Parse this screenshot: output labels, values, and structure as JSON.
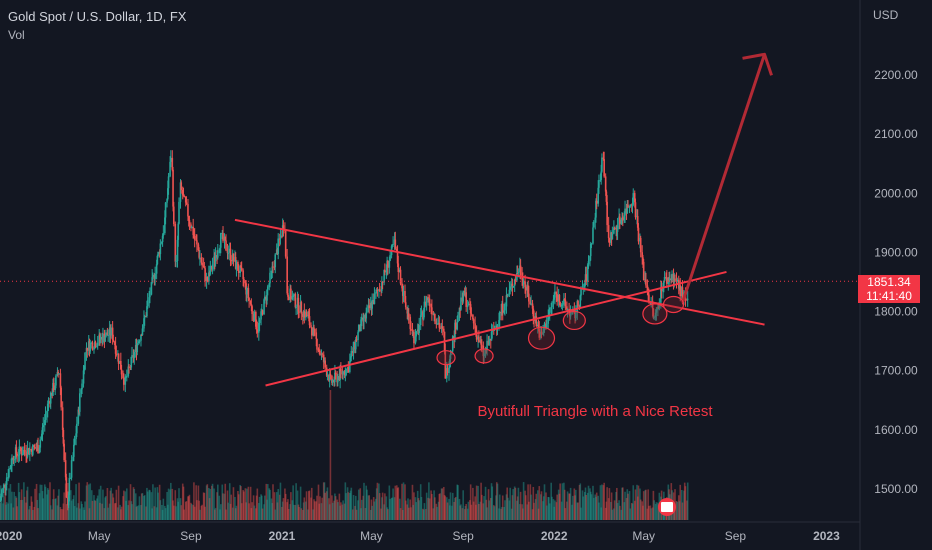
{
  "legend": {
    "title": "Gold Spot / U.S. Dollar, 1D, FX",
    "volume_label": "Vol"
  },
  "price_axis": {
    "currency": "USD",
    "current_price": "1851.34",
    "countdown": "11:41:40"
  },
  "annotation_text": "Byutifull Triangle with a Nice Retest",
  "colors": {
    "background": "#131722",
    "up": "#26a69a",
    "down": "#ef5350",
    "drawing": "#f23645",
    "arrow": "#b22a35",
    "price_line": "#f23645"
  },
  "chart_data": {
    "type": "candlestick",
    "title": "Gold Spot / U.S. Dollar, 1D, FX",
    "y_axis": {
      "ticks": [
        1500,
        1600,
        1700,
        1800,
        1900,
        2000,
        2100,
        2200
      ],
      "tick_labels": [
        "1500.00",
        "1600.00",
        "1700.00",
        "1800.00",
        "1900.00",
        "2000.00",
        "2100.00",
        "2200.00"
      ],
      "range": [
        1450,
        2330
      ]
    },
    "x_axis": {
      "tick_labels": [
        "2020",
        "May",
        "Sep",
        "2021",
        "May",
        "Sep",
        "2022",
        "May",
        "Sep",
        "2023"
      ],
      "tick_dates": [
        "2020-01-01",
        "2020-05-01",
        "2020-09-01",
        "2021-01-01",
        "2021-05-01",
        "2021-09-01",
        "2022-01-01",
        "2022-05-01",
        "2022-09-01",
        "2023-01-01"
      ],
      "range": [
        "2019-12-20",
        "2023-02-15"
      ]
    },
    "price_path": [
      [
        "2019-12-20",
        1480
      ],
      [
        "2020-01-08",
        1560
      ],
      [
        "2020-02-10",
        1570
      ],
      [
        "2020-02-24",
        1650
      ],
      [
        "2020-03-09",
        1700
      ],
      [
        "2020-03-19",
        1470
      ],
      [
        "2020-04-14",
        1740
      ],
      [
        "2020-05-18",
        1765
      ],
      [
        "2020-06-05",
        1680
      ],
      [
        "2020-06-30",
        1780
      ],
      [
        "2020-07-27",
        1940
      ],
      [
        "2020-08-06",
        2070
      ],
      [
        "2020-08-12",
        1865
      ],
      [
        "2020-08-18",
        2010
      ],
      [
        "2020-09-23",
        1850
      ],
      [
        "2020-10-12",
        1925
      ],
      [
        "2020-11-09",
        1860
      ],
      [
        "2020-11-30",
        1770
      ],
      [
        "2021-01-05",
        1955
      ],
      [
        "2021-01-08",
        1835
      ],
      [
        "2021-02-05",
        1790
      ],
      [
        "2021-03-08",
        1680
      ],
      [
        "2021-03-31",
        1705
      ],
      [
        "2021-04-15",
        1770
      ],
      [
        "2021-05-14",
        1845
      ],
      [
        "2021-06-01",
        1915
      ],
      [
        "2021-06-16",
        1810
      ],
      [
        "2021-06-29",
        1750
      ],
      [
        "2021-07-15",
        1825
      ],
      [
        "2021-08-06",
        1760
      ],
      [
        "2021-08-09",
        1690
      ],
      [
        "2021-08-25",
        1795
      ],
      [
        "2021-09-03",
        1830
      ],
      [
        "2021-09-29",
        1725
      ],
      [
        "2021-10-22",
        1800
      ],
      [
        "2021-11-16",
        1875
      ],
      [
        "2021-12-15",
        1755
      ],
      [
        "2022-01-03",
        1830
      ],
      [
        "2022-01-28",
        1790
      ],
      [
        "2022-02-14",
        1860
      ],
      [
        "2022-03-08",
        2070
      ],
      [
        "2022-03-15",
        1920
      ],
      [
        "2022-04-18",
        1995
      ],
      [
        "2022-05-02",
        1860
      ],
      [
        "2022-05-16",
        1785
      ],
      [
        "2022-05-27",
        1850
      ],
      [
        "2022-06-10",
        1860
      ],
      [
        "2022-06-24",
        1825
      ],
      [
        "2022-06-30",
        1810
      ]
    ],
    "volume_spike_date": "2021-03-08",
    "current_price": 1851.34,
    "drawings": {
      "triangle_upper_line": [
        [
          "2020-10-30",
          1955
        ],
        [
          "2022-10-10",
          1778
        ]
      ],
      "triangle_lower_line": [
        [
          "2020-12-10",
          1675
        ],
        [
          "2022-08-20",
          1867
        ]
      ],
      "retest_arrow": [
        [
          "2022-06-22",
          1815
        ],
        [
          "2022-10-10",
          2235
        ]
      ],
      "circles": [
        [
          "2021-08-09",
          1722
        ],
        [
          "2021-09-29",
          1725
        ],
        [
          "2021-12-15",
          1755
        ],
        [
          "2022-01-28",
          1785
        ],
        [
          "2022-05-16",
          1796
        ],
        [
          "2022-06-10",
          1812
        ]
      ]
    }
  }
}
